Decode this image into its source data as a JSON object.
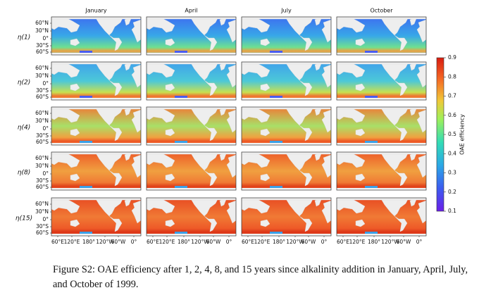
{
  "columns": [
    "January",
    "April",
    "July",
    "October"
  ],
  "rows": [
    "η(1)",
    "η(2)",
    "η(4)",
    "η(8)",
    "η(15)"
  ],
  "lat_labels": [
    "60°N",
    "30°N",
    "0°",
    "30°S",
    "60°S"
  ],
  "lon_labels": [
    "60°E",
    "120°E",
    "180°",
    "120°W",
    "60°W",
    "0°"
  ],
  "colorbar": {
    "label": "OAE efficiency",
    "lim": [
      0.1,
      0.9
    ],
    "ticks": [
      0.1,
      0.2,
      0.3,
      0.4,
      0.5,
      0.6,
      0.7,
      0.8,
      0.9
    ]
  },
  "caption": "Figure S2: OAE efficiency after 1, 2, 4, 8, and 15 years since alkalinity addition in January, April, July, and October of 1999."
}
